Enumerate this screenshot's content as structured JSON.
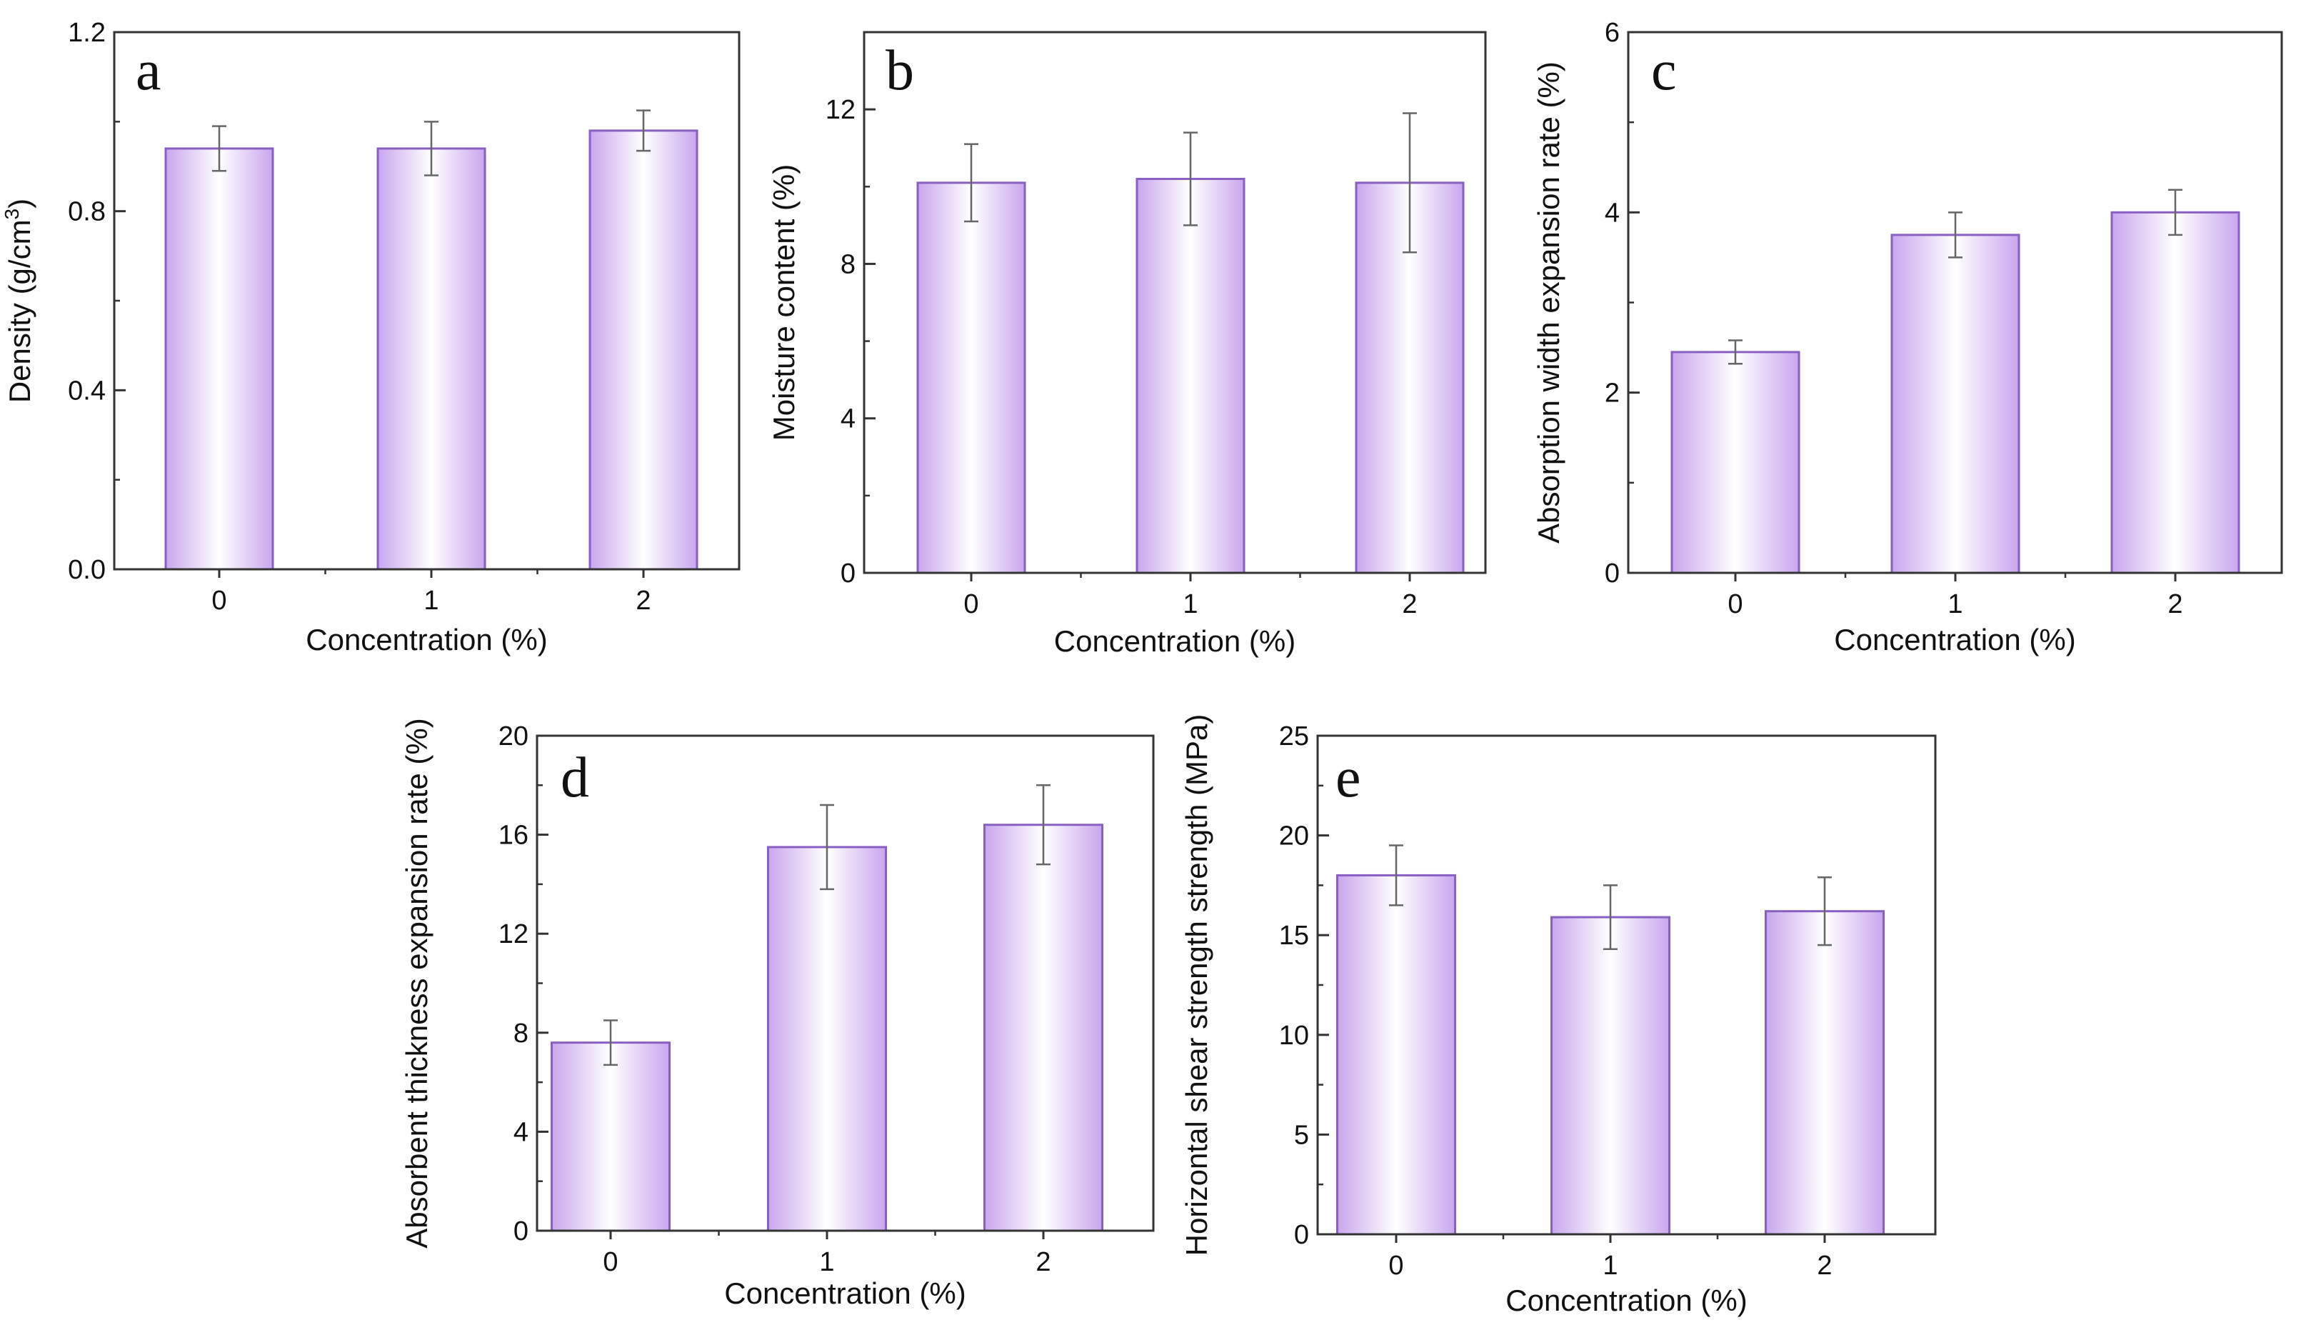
{
  "chart_data": [
    {
      "panel": "a",
      "type": "bar",
      "categories": [
        "0",
        "1",
        "2"
      ],
      "values": [
        0.94,
        0.94,
        0.98
      ],
      "errors": [
        0.05,
        0.06,
        0.045
      ],
      "xlabel": "Concentration (%)",
      "ylabel_parts": [
        "Density (g/cm",
        "3",
        ")"
      ],
      "ylim": [
        0,
        1.2
      ],
      "yticks": [
        "0.0",
        "0.4",
        "0.8",
        "1.2"
      ],
      "yticks_values": [
        0,
        0.4,
        0.8,
        1.2
      ],
      "minor_step": 0.2,
      "grid": false
    },
    {
      "panel": "b",
      "type": "bar",
      "categories": [
        "0",
        "1",
        "2"
      ],
      "values": [
        10.1,
        10.2,
        10.1
      ],
      "errors": [
        1.0,
        1.2,
        1.8
      ],
      "xlabel": "Concentration (%)",
      "ylabel": "Moisture content (%)",
      "ylim": [
        0,
        14
      ],
      "yticks": [
        "0",
        "4",
        "8",
        "12"
      ],
      "yticks_values": [
        0,
        4,
        8,
        12
      ],
      "minor_step": 2,
      "grid": false
    },
    {
      "panel": "c",
      "type": "bar",
      "categories": [
        "0",
        "1",
        "2"
      ],
      "values": [
        2.45,
        3.75,
        4.0
      ],
      "errors": [
        0.13,
        0.25,
        0.25
      ],
      "xlabel": "Concentration (%)",
      "ylabel": "Absorption width expansion rate (%)",
      "ylim": [
        0,
        6
      ],
      "yticks": [
        "0",
        "2",
        "4",
        "6"
      ],
      "yticks_values": [
        0,
        2,
        4,
        6
      ],
      "minor_step": 1,
      "grid": false
    },
    {
      "panel": "d",
      "type": "bar",
      "categories": [
        "0",
        "1",
        "2"
      ],
      "values": [
        7.6,
        15.5,
        16.4
      ],
      "errors": [
        0.9,
        1.7,
        1.6
      ],
      "xlabel": "Concentration (%)",
      "ylabel": "Absorbent thickness expansion rate (%)",
      "ylim": [
        0,
        20
      ],
      "yticks": [
        "0",
        "4",
        "8",
        "12",
        "16",
        "20"
      ],
      "yticks_values": [
        0,
        4,
        8,
        12,
        16,
        20
      ],
      "minor_step": 2,
      "grid": false
    },
    {
      "panel": "e",
      "type": "bar",
      "categories": [
        "0",
        "1",
        "2"
      ],
      "values": [
        18.0,
        15.9,
        16.2
      ],
      "errors": [
        1.5,
        1.6,
        1.7
      ],
      "xlabel": "Concentration (%)",
      "ylabel": "Horizontal shear strength strength (MPa)",
      "ylim": [
        0,
        25
      ],
      "yticks": [
        "0",
        "5",
        "10",
        "15",
        "20",
        "25"
      ],
      "yticks_values": [
        0,
        5,
        10,
        15,
        20,
        25
      ],
      "minor_step": 2.5,
      "grid": false
    }
  ],
  "colors": {
    "bar_edge": "#8a5fc4",
    "bar_center": "#ffffff",
    "bar_side": "#c9a6ee",
    "axis": "#333333",
    "error_bar": "#666666"
  }
}
